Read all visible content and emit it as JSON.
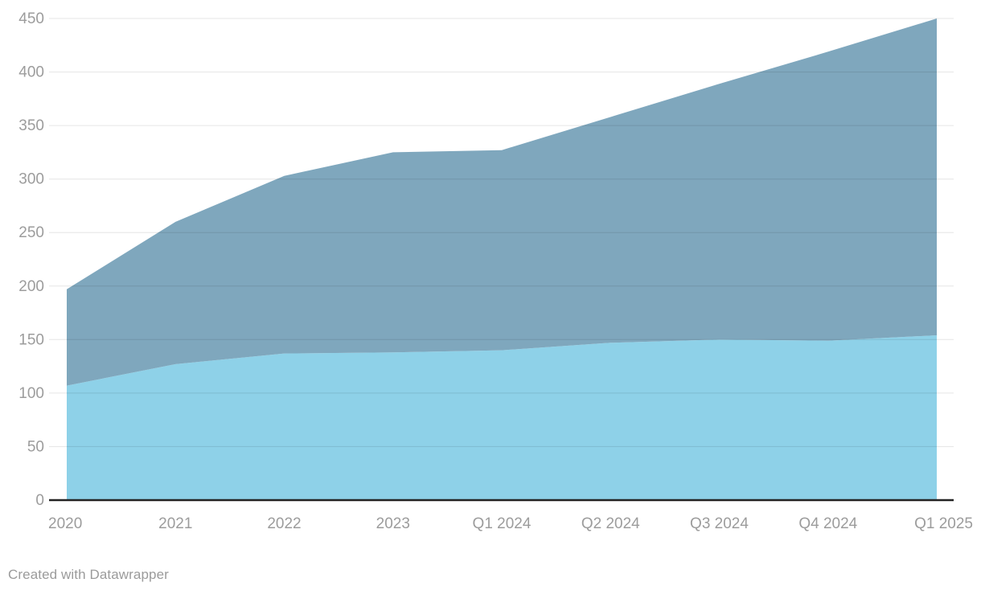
{
  "footer": {
    "credit": "Created with Datawrapper"
  },
  "colors": {
    "background": "#ffffff",
    "area_bottom": "#8ed1e8",
    "area_top": "#7fa7bd",
    "gridline": "rgba(0,0,0,0.10)",
    "axis_line": "#222222",
    "tick_label": "#9c9c9c",
    "credit_text": "#9b9b9b"
  },
  "chart_data": {
    "type": "area",
    "stacked": true,
    "title": "",
    "xlabel": "",
    "ylabel": "",
    "grid": true,
    "legend": "none",
    "categories": [
      "2020",
      "2021",
      "2022",
      "2023",
      "Q1 2024",
      "Q2 2024",
      "Q3 2024",
      "Q4 2024",
      "Q1 2025"
    ],
    "series": [
      {
        "name": "bottom-light-blue",
        "color": "#8ed1e8",
        "values": [
          107,
          127,
          137,
          138,
          140,
          147,
          150,
          149,
          154
        ]
      },
      {
        "name": "top-steel-blue",
        "color": "#7fa7bd",
        "values": [
          90,
          133,
          166,
          187,
          187,
          211,
          239,
          270,
          296
        ]
      }
    ],
    "stacked_totals": [
      197,
      260,
      303,
      325,
      327,
      358,
      389,
      419,
      450
    ],
    "ylim": [
      0,
      450
    ],
    "yticks": [
      0,
      50,
      100,
      150,
      200,
      250,
      300,
      350,
      400,
      450
    ]
  }
}
